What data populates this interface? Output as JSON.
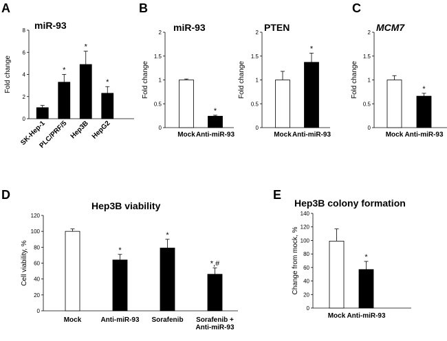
{
  "panels": [
    {
      "letter": "A"
    },
    {
      "letter": "B"
    },
    {
      "letter": "C"
    },
    {
      "letter": "D"
    },
    {
      "letter": "E"
    }
  ],
  "chart_data": [
    {
      "id": "A",
      "type": "bar",
      "title": "miR-93",
      "title_italic": false,
      "ylabel": "Fold change",
      "ylim": [
        0,
        8
      ],
      "yticks": [
        "0",
        "2",
        "4",
        "6",
        "8"
      ],
      "categories": [
        "SK-Hep-1",
        "PLC/PRF/5",
        "Hep3B",
        "HepG2"
      ],
      "values": [
        1.0,
        3.3,
        4.9,
        2.3
      ],
      "errors": [
        0.2,
        0.7,
        1.2,
        0.6
      ],
      "fills": [
        "#000000",
        "#000000",
        "#000000",
        "#000000"
      ],
      "annotations": [
        "",
        "*",
        "*",
        "*"
      ],
      "rotate_labels": true
    },
    {
      "id": "B1",
      "type": "bar",
      "title": "miR-93",
      "title_italic": false,
      "ylabel": "Fold change",
      "ylim": [
        0,
        2
      ],
      "yticks": [
        "0",
        "0.5",
        "1",
        "1.5",
        "2"
      ],
      "categories": [
        "Mock",
        "Anti-miR-93"
      ],
      "values": [
        1.0,
        0.24
      ],
      "errors": [
        0.02,
        0.02
      ],
      "fills": [
        "#ffffff",
        "#000000"
      ],
      "annotations": [
        "",
        "*"
      ]
    },
    {
      "id": "B2",
      "type": "bar",
      "title": "PTEN",
      "title_italic": false,
      "ylabel": "Fold change",
      "ylim": [
        0,
        2
      ],
      "yticks": [
        "0",
        "0.5",
        "1",
        "1.5",
        "2"
      ],
      "categories": [
        "Mock",
        "Anti-miR-93"
      ],
      "values": [
        1.0,
        1.37
      ],
      "errors": [
        0.18,
        0.19
      ],
      "fills": [
        "#ffffff",
        "#000000"
      ],
      "annotations": [
        "",
        "*"
      ]
    },
    {
      "id": "C",
      "type": "bar",
      "title": "MCM7",
      "title_italic": true,
      "ylabel": "Fold change",
      "ylim": [
        0,
        2
      ],
      "yticks": [
        "0",
        "0.5",
        "1",
        "1.5",
        "2"
      ],
      "categories": [
        "Mock",
        "Anti-miR-93"
      ],
      "values": [
        1.0,
        0.66
      ],
      "errors": [
        0.09,
        0.06
      ],
      "fills": [
        "#ffffff",
        "#000000"
      ],
      "annotations": [
        "",
        "*"
      ]
    },
    {
      "id": "D",
      "type": "bar",
      "title": "Hep3B viability",
      "title_italic": false,
      "ylabel": "Cell viability,  %",
      "ylim": [
        0,
        120
      ],
      "yticks": [
        "0",
        "20",
        "40",
        "60",
        "80",
        "100",
        "120"
      ],
      "categories": [
        "Mock",
        "Anti-miR-93",
        "Sorafenib",
        "Sorafenib +|Anti-miR-93"
      ],
      "values": [
        100,
        64,
        79,
        46
      ],
      "errors": [
        3,
        7,
        11,
        8
      ],
      "fills": [
        "#ffffff",
        "#000000",
        "#000000",
        "#000000"
      ],
      "annotations": [
        "",
        "*",
        "*",
        "*,#"
      ]
    },
    {
      "id": "E",
      "type": "bar",
      "title": "Hep3B colony formation",
      "title_italic": false,
      "ylabel": "Change from mock, %",
      "ylim": [
        0,
        140
      ],
      "yticks": [
        "0",
        "20",
        "40",
        "60",
        "80",
        "100",
        "120",
        "140"
      ],
      "categories": [
        "Mock",
        "Anti-miR-93"
      ],
      "values": [
        99,
        57
      ],
      "errors": [
        18,
        12
      ],
      "fills": [
        "#ffffff",
        "#000000"
      ],
      "annotations": [
        "",
        "*"
      ]
    }
  ]
}
